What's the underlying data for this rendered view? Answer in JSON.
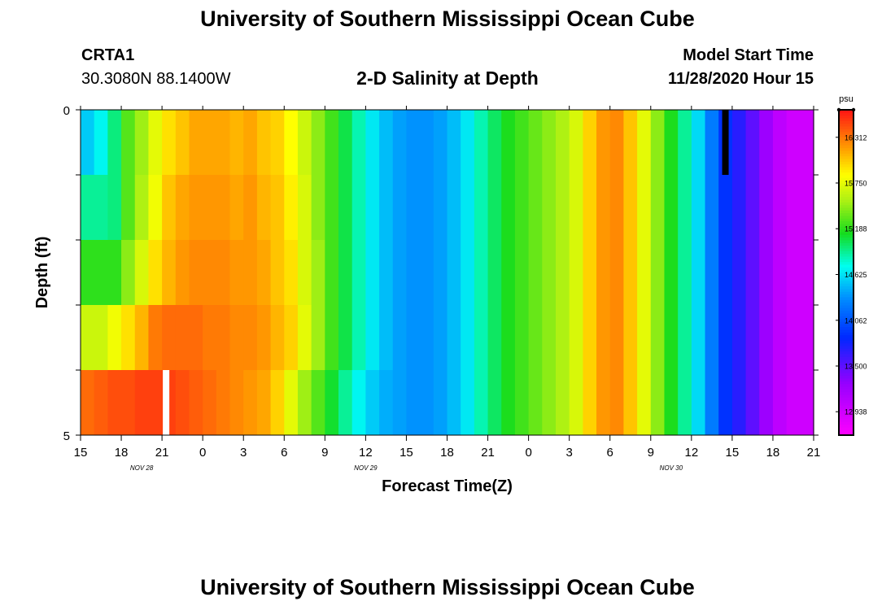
{
  "header": {
    "title": "University of Southern Mississippi Ocean Cube",
    "station_id": "CRTA1",
    "station_coords": "30.3080N 88.1400W",
    "plot_title": "2-D Salinity at Depth",
    "start_label": "Model Start Time",
    "start_value": "11/28/2020 Hour 15"
  },
  "footer": {
    "title": "University of Southern Mississippi Ocean Cube"
  },
  "chart_data": {
    "type": "heatmap",
    "title": "2-D Salinity at Depth",
    "xlabel": "Forecast Time(Z)",
    "ylabel": "Depth (ft)",
    "x_unit": "hours since 11/28/2020 15Z",
    "x_range": [
      0,
      54
    ],
    "y_range": [
      0,
      5
    ],
    "y_ticks": [
      "0",
      "5"
    ],
    "x_ticks": [
      "15",
      "18",
      "21",
      "0",
      "3",
      "6",
      "9",
      "12",
      "15",
      "18",
      "21",
      "0",
      "3",
      "6",
      "9",
      "12",
      "15",
      "18",
      "21"
    ],
    "date_labels": [
      {
        "text": "NOV 28",
        "hour": 4.5
      },
      {
        "text": "NOV 29",
        "hour": 21
      },
      {
        "text": "NOV 30",
        "hour": 43.5
      }
    ],
    "colorbar": {
      "unit": "psu",
      "vmin": 12.65,
      "vmax": 16.65,
      "tick_values": [
        16.312,
        15.75,
        15.188,
        14.625,
        14.062,
        13.5,
        12.938
      ],
      "tick_labels": [
        "16.312",
        "15.750",
        "15.188",
        "14.625",
        "14.062",
        "13.500",
        "12.938"
      ]
    },
    "depth_layers": [
      "0-1 ft",
      "1-2 ft",
      "2-3 ft",
      "3-4 ft",
      "4-5 ft"
    ],
    "time_hours": [
      0,
      1,
      2,
      3,
      4,
      5,
      6,
      7,
      8,
      9,
      10,
      11,
      12,
      13,
      14,
      15,
      16,
      17,
      18,
      19,
      20,
      21,
      22,
      23,
      24,
      25,
      26,
      27,
      28,
      29,
      30,
      31,
      32,
      33,
      34,
      35,
      36,
      37,
      38,
      39,
      40,
      41,
      42,
      43,
      44,
      45,
      46,
      47,
      48,
      49,
      50,
      51,
      52,
      53
    ],
    "salinity": [
      [
        14.55,
        14.7,
        14.95,
        15.3,
        15.5,
        15.75,
        15.95,
        16.05,
        16.15,
        16.15,
        16.15,
        16.1,
        16.15,
        16.05,
        16.0,
        15.85,
        15.65,
        15.45,
        15.25,
        15.05,
        14.85,
        14.65,
        14.5,
        14.4,
        14.35,
        14.35,
        14.4,
        14.5,
        14.65,
        14.85,
        15.0,
        15.15,
        15.25,
        15.35,
        15.45,
        15.55,
        15.7,
        16.0,
        16.2,
        16.25,
        16.05,
        15.75,
        15.45,
        15.15,
        14.9,
        14.6,
        14.25,
        13.9,
        13.7,
        13.5,
        13.25,
        13.05,
        12.95,
        12.95
      ],
      [
        14.9,
        14.9,
        14.95,
        15.3,
        15.55,
        15.8,
        16.05,
        16.15,
        16.2,
        16.2,
        16.2,
        16.15,
        16.2,
        16.1,
        16.05,
        15.9,
        15.7,
        15.45,
        15.25,
        15.05,
        14.85,
        14.65,
        14.5,
        14.4,
        14.35,
        14.35,
        14.4,
        14.5,
        14.65,
        14.85,
        15.0,
        15.15,
        15.25,
        15.35,
        15.45,
        15.55,
        15.7,
        16.0,
        16.2,
        16.25,
        16.05,
        15.75,
        15.45,
        15.15,
        14.9,
        14.6,
        14.25,
        13.9,
        13.7,
        13.5,
        13.25,
        13.05,
        12.95,
        12.95
      ],
      [
        15.2,
        15.2,
        15.2,
        15.45,
        15.7,
        15.95,
        16.1,
        16.2,
        16.25,
        16.25,
        16.25,
        16.2,
        16.2,
        16.15,
        16.05,
        15.95,
        15.7,
        15.5,
        15.25,
        15.05,
        14.85,
        14.65,
        14.5,
        14.4,
        14.35,
        14.35,
        14.4,
        14.5,
        14.65,
        14.85,
        15.0,
        15.15,
        15.25,
        15.35,
        15.45,
        15.55,
        15.7,
        16.0,
        16.2,
        16.25,
        16.05,
        15.75,
        15.45,
        15.15,
        14.9,
        14.6,
        14.25,
        13.9,
        13.7,
        13.5,
        13.25,
        13.05,
        12.95,
        12.95
      ],
      [
        15.65,
        15.65,
        15.8,
        15.95,
        16.1,
        16.3,
        16.35,
        16.35,
        16.35,
        16.3,
        16.3,
        16.25,
        16.25,
        16.2,
        16.1,
        16.0,
        15.75,
        15.5,
        15.25,
        15.05,
        14.85,
        14.65,
        14.5,
        14.4,
        14.35,
        14.35,
        14.4,
        14.5,
        14.65,
        14.85,
        15.0,
        15.15,
        15.25,
        15.35,
        15.45,
        15.55,
        15.7,
        16.0,
        16.2,
        16.25,
        16.05,
        15.75,
        15.45,
        15.15,
        14.9,
        14.6,
        14.25,
        13.9,
        13.7,
        13.5,
        13.25,
        13.05,
        12.95,
        12.95
      ],
      [
        16.35,
        16.4,
        16.45,
        16.45,
        16.5,
        16.5,
        16.5,
        16.45,
        16.4,
        16.35,
        16.3,
        16.25,
        16.2,
        16.15,
        16.0,
        15.75,
        15.5,
        15.3,
        15.1,
        14.9,
        14.7,
        14.55,
        14.45,
        14.4,
        14.35,
        14.35,
        14.4,
        14.5,
        14.65,
        14.85,
        15.0,
        15.15,
        15.25,
        15.35,
        15.45,
        15.55,
        15.7,
        16.0,
        16.2,
        16.25,
        16.05,
        15.75,
        15.45,
        15.15,
        14.9,
        14.6,
        14.25,
        13.9,
        13.7,
        13.5,
        13.25,
        13.05,
        12.95,
        12.95
      ]
    ],
    "markers": [
      {
        "color": "#ffffff",
        "hour": 6.3,
        "depth_from": 4,
        "depth_to": 5
      },
      {
        "color": "#000000",
        "hour": 47.5,
        "depth_from": 0,
        "depth_to": 1
      }
    ]
  }
}
